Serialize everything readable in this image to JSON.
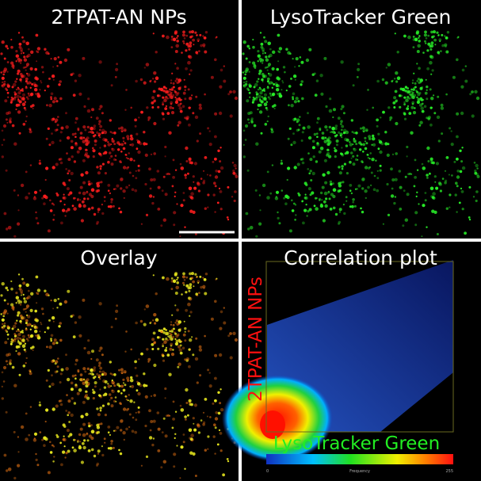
{
  "panels": [
    {
      "title": "2TPAT-AN NPs"
    },
    {
      "title": "LysoTracker Green"
    },
    {
      "title": "Overlay"
    },
    {
      "title": "Correlation plot"
    }
  ],
  "correlation_plot": {
    "x_label": "LysoTracker Green",
    "y_label": "2TPAT-AN NPs",
    "colorbar_labels": [
      "0",
      "Frequency",
      "255"
    ]
  }
}
